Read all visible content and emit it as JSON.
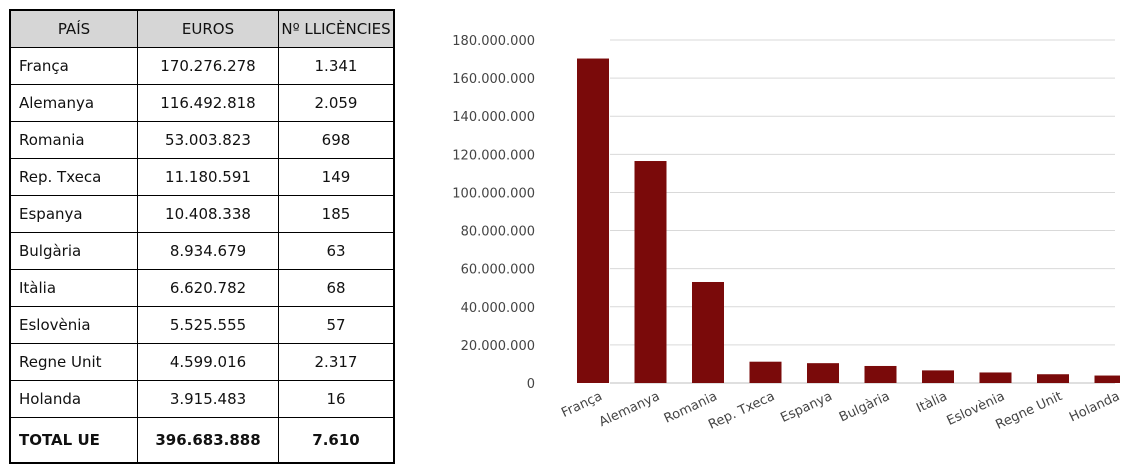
{
  "table": {
    "headers": [
      "PAÍS",
      "EUROS",
      "Nº LLICÈNCIES"
    ],
    "rows": [
      [
        "França",
        "170.276.278",
        "1.341"
      ],
      [
        "Alemanya",
        "116.492.818",
        "2.059"
      ],
      [
        "Romania",
        "53.003.823",
        "698"
      ],
      [
        "Rep. Txeca",
        "11.180.591",
        "149"
      ],
      [
        "Espanya",
        "10.408.338",
        "185"
      ],
      [
        "Bulgària",
        "8.934.679",
        "63"
      ],
      [
        "Itàlia",
        "6.620.782",
        "68"
      ],
      [
        "Eslovènia",
        "5.525.555",
        "57"
      ],
      [
        "Regne Unit",
        "4.599.016",
        "2.317"
      ],
      [
        "Holanda",
        "3.915.483",
        "16"
      ]
    ],
    "total": [
      "TOTAL UE",
      "396.683.888",
      "7.610"
    ]
  },
  "chart_data": {
    "type": "bar",
    "categories": [
      "França",
      "Alemanya",
      "Romania",
      "Rep. Txeca",
      "Espanya",
      "Bulgària",
      "Itàlia",
      "Eslovènia",
      "Regne Unit",
      "Holanda"
    ],
    "values": [
      170276278,
      116492818,
      53003823,
      11180591,
      10408338,
      8934679,
      6620782,
      5525555,
      4599016,
      3915483
    ],
    "ylim": [
      0,
      180000000
    ],
    "yticks": [
      "0",
      "20.000.000",
      "40.000.000",
      "60.000.000",
      "80.000.000",
      "100.000.000",
      "120.000.000",
      "140.000.000",
      "160.000.000",
      "180.000.000"
    ],
    "grid": true,
    "bar_color": "#7a0a0a"
  }
}
